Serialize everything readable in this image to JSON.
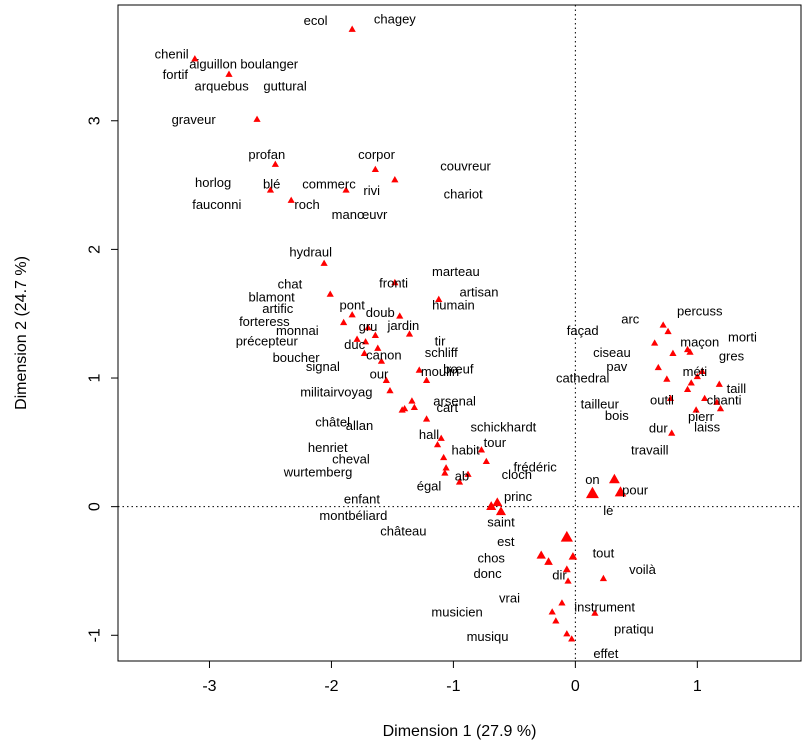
{
  "chart_data": {
    "type": "scatter",
    "title": "",
    "xlabel": "Dimension 1 (27.9 %)",
    "ylabel": "Dimension 2 (24.7 %)",
    "xlim": [
      -3.75,
      1.85
    ],
    "ylim": [
      -1.2,
      3.9
    ],
    "xticks": [
      -3,
      -2,
      -1,
      0,
      1
    ],
    "yticks": [
      -1,
      0,
      1,
      2,
      3
    ],
    "xtick_labels": [
      "-3",
      "-2",
      "-1",
      "0",
      "1"
    ],
    "ytick_labels": [
      "-1",
      "0",
      "1",
      "2",
      "3"
    ],
    "reference_lines": {
      "x": 0,
      "y": 0,
      "style": "dotted"
    },
    "marker": "triangle",
    "color": "#ff0000",
    "grid": false,
    "points": [
      {
        "x": -1.83,
        "y": 3.71,
        "size": 1
      },
      {
        "x": -3.12,
        "y": 3.48,
        "size": 1
      },
      {
        "x": -2.84,
        "y": 3.36,
        "size": 1
      },
      {
        "x": -2.61,
        "y": 3.01,
        "size": 1
      },
      {
        "x": -2.46,
        "y": 2.66,
        "size": 1
      },
      {
        "x": -2.5,
        "y": 2.46,
        "size": 1
      },
      {
        "x": -2.33,
        "y": 2.38,
        "size": 1
      },
      {
        "x": -1.64,
        "y": 2.62,
        "size": 1
      },
      {
        "x": -1.48,
        "y": 2.54,
        "size": 1
      },
      {
        "x": -1.88,
        "y": 2.46,
        "size": 1
      },
      {
        "x": -2.06,
        "y": 1.89,
        "size": 1
      },
      {
        "x": -2.01,
        "y": 1.65,
        "size": 1
      },
      {
        "x": -1.48,
        "y": 1.74,
        "size": 1
      },
      {
        "x": -1.12,
        "y": 1.61,
        "size": 1
      },
      {
        "x": -1.83,
        "y": 1.49,
        "size": 1
      },
      {
        "x": -1.9,
        "y": 1.43,
        "size": 1
      },
      {
        "x": -1.44,
        "y": 1.48,
        "size": 1
      },
      {
        "x": -1.7,
        "y": 1.39,
        "size": 1
      },
      {
        "x": -1.64,
        "y": 1.33,
        "size": 1
      },
      {
        "x": -1.36,
        "y": 1.34,
        "size": 1
      },
      {
        "x": -1.79,
        "y": 1.3,
        "size": 1
      },
      {
        "x": -1.72,
        "y": 1.28,
        "size": 1
      },
      {
        "x": -1.62,
        "y": 1.23,
        "size": 1
      },
      {
        "x": -1.73,
        "y": 1.19,
        "size": 1
      },
      {
        "x": -1.59,
        "y": 1.13,
        "size": 1
      },
      {
        "x": -1.28,
        "y": 1.06,
        "size": 1
      },
      {
        "x": -1.22,
        "y": 0.98,
        "size": 1
      },
      {
        "x": -1.55,
        "y": 0.98,
        "size": 1
      },
      {
        "x": -1.52,
        "y": 0.9,
        "size": 1
      },
      {
        "x": -1.34,
        "y": 0.82,
        "size": 1
      },
      {
        "x": -1.32,
        "y": 0.77,
        "size": 1
      },
      {
        "x": -1.4,
        "y": 0.76,
        "size": 1
      },
      {
        "x": -1.42,
        "y": 0.75,
        "size": 1
      },
      {
        "x": -1.22,
        "y": 0.68,
        "size": 1
      },
      {
        "x": -1.1,
        "y": 0.53,
        "size": 1
      },
      {
        "x": -1.13,
        "y": 0.48,
        "size": 1
      },
      {
        "x": -1.08,
        "y": 0.38,
        "size": 1
      },
      {
        "x": -1.06,
        "y": 0.3,
        "size": 1
      },
      {
        "x": -1.07,
        "y": 0.26,
        "size": 1
      },
      {
        "x": -0.88,
        "y": 0.25,
        "size": 1
      },
      {
        "x": -0.95,
        "y": 0.19,
        "size": 1
      },
      {
        "x": -0.77,
        "y": 0.44,
        "size": 1
      },
      {
        "x": -0.73,
        "y": 0.35,
        "size": 1
      },
      {
        "x": -0.69,
        "y": 0.0,
        "size": 1.4
      },
      {
        "x": -0.64,
        "y": 0.03,
        "size": 1.4
      },
      {
        "x": -0.61,
        "y": -0.04,
        "size": 1.4
      },
      {
        "x": -0.07,
        "y": -0.24,
        "size": 1.7
      },
      {
        "x": -0.28,
        "y": -0.38,
        "size": 1.3
      },
      {
        "x": -0.22,
        "y": -0.43,
        "size": 1.2
      },
      {
        "x": -0.02,
        "y": -0.39,
        "size": 1.2
      },
      {
        "x": -0.07,
        "y": -0.49,
        "size": 1.1
      },
      {
        "x": -0.06,
        "y": -0.58,
        "size": 1
      },
      {
        "x": -0.11,
        "y": -0.75,
        "size": 1
      },
      {
        "x": -0.19,
        "y": -0.82,
        "size": 1
      },
      {
        "x": -0.16,
        "y": -0.89,
        "size": 1
      },
      {
        "x": -0.07,
        "y": -0.99,
        "size": 1
      },
      {
        "x": -0.03,
        "y": -1.03,
        "size": 1
      },
      {
        "x": 0.14,
        "y": 0.1,
        "size": 1.8
      },
      {
        "x": 0.32,
        "y": 0.21,
        "size": 1.5
      },
      {
        "x": 0.37,
        "y": 0.11,
        "size": 1.6
      },
      {
        "x": 0.23,
        "y": -0.56,
        "size": 1
      },
      {
        "x": 0.16,
        "y": -0.83,
        "size": 1
      },
      {
        "x": 0.72,
        "y": 1.41,
        "size": 1
      },
      {
        "x": 0.76,
        "y": 1.36,
        "size": 1
      },
      {
        "x": 0.65,
        "y": 1.27,
        "size": 1
      },
      {
        "x": 0.8,
        "y": 1.19,
        "size": 1
      },
      {
        "x": 0.92,
        "y": 1.22,
        "size": 1
      },
      {
        "x": 0.94,
        "y": 1.2,
        "size": 1
      },
      {
        "x": 0.68,
        "y": 1.08,
        "size": 1
      },
      {
        "x": 1.04,
        "y": 1.05,
        "size": 1
      },
      {
        "x": 0.75,
        "y": 0.99,
        "size": 1
      },
      {
        "x": 1.0,
        "y": 1.01,
        "size": 1
      },
      {
        "x": 0.95,
        "y": 0.96,
        "size": 1
      },
      {
        "x": 0.92,
        "y": 0.91,
        "size": 1
      },
      {
        "x": 1.18,
        "y": 0.95,
        "size": 1
      },
      {
        "x": 0.78,
        "y": 0.84,
        "size": 1
      },
      {
        "x": 1.06,
        "y": 0.84,
        "size": 1
      },
      {
        "x": 1.16,
        "y": 0.81,
        "size": 1
      },
      {
        "x": 0.99,
        "y": 0.75,
        "size": 1
      },
      {
        "x": 1.19,
        "y": 0.76,
        "size": 1
      },
      {
        "x": 0.79,
        "y": 0.57,
        "size": 1
      }
    ],
    "labels": [
      {
        "text": "ecol",
        "x": -2.13,
        "y": 3.78
      },
      {
        "text": "chagey",
        "x": -1.48,
        "y": 3.79
      },
      {
        "text": "chenil",
        "x": -3.31,
        "y": 3.52
      },
      {
        "text": "aiguillon",
        "x": -2.97,
        "y": 3.44
      },
      {
        "text": "boulanger",
        "x": -2.51,
        "y": 3.44
      },
      {
        "text": "fortif",
        "x": -3.28,
        "y": 3.36
      },
      {
        "text": "arquebus",
        "x": -2.9,
        "y": 3.27
      },
      {
        "text": "guttural",
        "x": -2.38,
        "y": 3.27
      },
      {
        "text": "graveur",
        "x": -3.13,
        "y": 3.01
      },
      {
        "text": "profan",
        "x": -2.53,
        "y": 2.74
      },
      {
        "text": "corpor",
        "x": -1.63,
        "y": 2.74
      },
      {
        "text": "couvreur",
        "x": -0.9,
        "y": 2.65
      },
      {
        "text": "horlog",
        "x": -2.97,
        "y": 2.52
      },
      {
        "text": "blé",
        "x": -2.49,
        "y": 2.51
      },
      {
        "text": "commerc",
        "x": -2.02,
        "y": 2.51
      },
      {
        "text": "rivi",
        "x": -1.67,
        "y": 2.46
      },
      {
        "text": "chariot",
        "x": -0.92,
        "y": 2.43
      },
      {
        "text": "fauconni",
        "x": -2.94,
        "y": 2.35
      },
      {
        "text": "roch",
        "x": -2.2,
        "y": 2.35
      },
      {
        "text": "manœuvr",
        "x": -1.77,
        "y": 2.27
      },
      {
        "text": "hydraul",
        "x": -2.17,
        "y": 1.98
      },
      {
        "text": "marteau",
        "x": -0.98,
        "y": 1.83
      },
      {
        "text": "chat",
        "x": -2.34,
        "y": 1.73
      },
      {
        "text": "fronti",
        "x": -1.49,
        "y": 1.74
      },
      {
        "text": "artisan",
        "x": -0.79,
        "y": 1.67
      },
      {
        "text": "blamont",
        "x": -2.49,
        "y": 1.63
      },
      {
        "text": "pont",
        "x": -1.83,
        "y": 1.57
      },
      {
        "text": "humain",
        "x": -1.0,
        "y": 1.57
      },
      {
        "text": "artific",
        "x": -2.44,
        "y": 1.54
      },
      {
        "text": "doub",
        "x": -1.6,
        "y": 1.51
      },
      {
        "text": "forteress",
        "x": -2.55,
        "y": 1.44
      },
      {
        "text": "jardin",
        "x": -1.41,
        "y": 1.41
      },
      {
        "text": "monnai",
        "x": -2.28,
        "y": 1.37
      },
      {
        "text": "gru",
        "x": -1.7,
        "y": 1.4
      },
      {
        "text": "tir",
        "x": -1.11,
        "y": 1.29
      },
      {
        "text": "précepteur",
        "x": -2.53,
        "y": 1.29
      },
      {
        "text": "duc",
        "x": -1.81,
        "y": 1.26
      },
      {
        "text": "schliff",
        "x": -1.1,
        "y": 1.2
      },
      {
        "text": "canon",
        "x": -1.57,
        "y": 1.18
      },
      {
        "text": "boucher",
        "x": -2.29,
        "y": 1.16
      },
      {
        "text": "signal",
        "x": -2.07,
        "y": 1.09
      },
      {
        "text": "bœuf",
        "x": -0.96,
        "y": 1.07
      },
      {
        "text": "moulin",
        "x": -1.11,
        "y": 1.05
      },
      {
        "text": "our",
        "x": -1.61,
        "y": 1.03
      },
      {
        "text": "militairvoyag",
        "x": -1.96,
        "y": 0.89
      },
      {
        "text": "arsenal",
        "x": -0.99,
        "y": 0.82
      },
      {
        "text": "cart",
        "x": -1.05,
        "y": 0.77
      },
      {
        "text": "châtel",
        "x": -1.99,
        "y": 0.66
      },
      {
        "text": "allan",
        "x": -1.77,
        "y": 0.63
      },
      {
        "text": "schickhardt",
        "x": -0.59,
        "y": 0.62
      },
      {
        "text": "hall",
        "x": -1.2,
        "y": 0.56
      },
      {
        "text": "tour",
        "x": -0.66,
        "y": 0.5
      },
      {
        "text": "henriet",
        "x": -2.03,
        "y": 0.46
      },
      {
        "text": "habit",
        "x": -0.9,
        "y": 0.44
      },
      {
        "text": "cheval",
        "x": -1.84,
        "y": 0.37
      },
      {
        "text": "frédéric",
        "x": -0.33,
        "y": 0.31
      },
      {
        "text": "wurtemberg",
        "x": -2.11,
        "y": 0.27
      },
      {
        "text": "ab",
        "x": -0.93,
        "y": 0.24
      },
      {
        "text": "cloch",
        "x": -0.48,
        "y": 0.25
      },
      {
        "text": "on",
        "x": 0.14,
        "y": 0.21
      },
      {
        "text": "pour",
        "x": 0.49,
        "y": 0.13
      },
      {
        "text": "égal",
        "x": -1.2,
        "y": 0.16
      },
      {
        "text": "enfant",
        "x": -1.75,
        "y": 0.06
      },
      {
        "text": "princ",
        "x": -0.47,
        "y": 0.08
      },
      {
        "text": "le",
        "x": 0.27,
        "y": -0.03
      },
      {
        "text": "montbéliard",
        "x": -1.82,
        "y": -0.07
      },
      {
        "text": "saint",
        "x": -0.61,
        "y": -0.12
      },
      {
        "text": "château",
        "x": -1.41,
        "y": -0.19
      },
      {
        "text": "est",
        "x": -0.57,
        "y": -0.27
      },
      {
        "text": "tout",
        "x": 0.23,
        "y": -0.36
      },
      {
        "text": "chos",
        "x": -0.69,
        "y": -0.4
      },
      {
        "text": "donc",
        "x": -0.72,
        "y": -0.52
      },
      {
        "text": "dir",
        "x": -0.13,
        "y": -0.53
      },
      {
        "text": "voilà",
        "x": 0.55,
        "y": -0.49
      },
      {
        "text": "vrai",
        "x": -0.54,
        "y": -0.71
      },
      {
        "text": "instrument",
        "x": 0.24,
        "y": -0.78
      },
      {
        "text": "musicien",
        "x": -0.97,
        "y": -0.82
      },
      {
        "text": "pratiqu",
        "x": 0.48,
        "y": -0.95
      },
      {
        "text": "musiqu",
        "x": -0.72,
        "y": -1.01
      },
      {
        "text": "effet",
        "x": 0.25,
        "y": -1.14
      },
      {
        "text": "arc",
        "x": 0.45,
        "y": 1.46
      },
      {
        "text": "percuss",
        "x": 1.02,
        "y": 1.52
      },
      {
        "text": "façad",
        "x": 0.06,
        "y": 1.37
      },
      {
        "text": "morti",
        "x": 1.37,
        "y": 1.32
      },
      {
        "text": "maçon",
        "x": 1.02,
        "y": 1.28
      },
      {
        "text": "ciseau",
        "x": 0.3,
        "y": 1.2
      },
      {
        "text": "gres",
        "x": 1.28,
        "y": 1.17
      },
      {
        "text": "pav",
        "x": 0.34,
        "y": 1.09
      },
      {
        "text": "méti",
        "x": 0.98,
        "y": 1.05
      },
      {
        "text": "cathedral",
        "x": 0.06,
        "y": 1.0
      },
      {
        "text": "taill",
        "x": 1.32,
        "y": 0.92
      },
      {
        "text": "chanti",
        "x": 1.22,
        "y": 0.83
      },
      {
        "text": "outil",
        "x": 0.71,
        "y": 0.83
      },
      {
        "text": "tailleur",
        "x": 0.2,
        "y": 0.8
      },
      {
        "text": "bois",
        "x": 0.34,
        "y": 0.71
      },
      {
        "text": "pierr",
        "x": 1.03,
        "y": 0.7
      },
      {
        "text": "laiss",
        "x": 1.08,
        "y": 0.62
      },
      {
        "text": "dur",
        "x": 0.68,
        "y": 0.61
      },
      {
        "text": "travaill",
        "x": 0.61,
        "y": 0.44
      }
    ]
  }
}
